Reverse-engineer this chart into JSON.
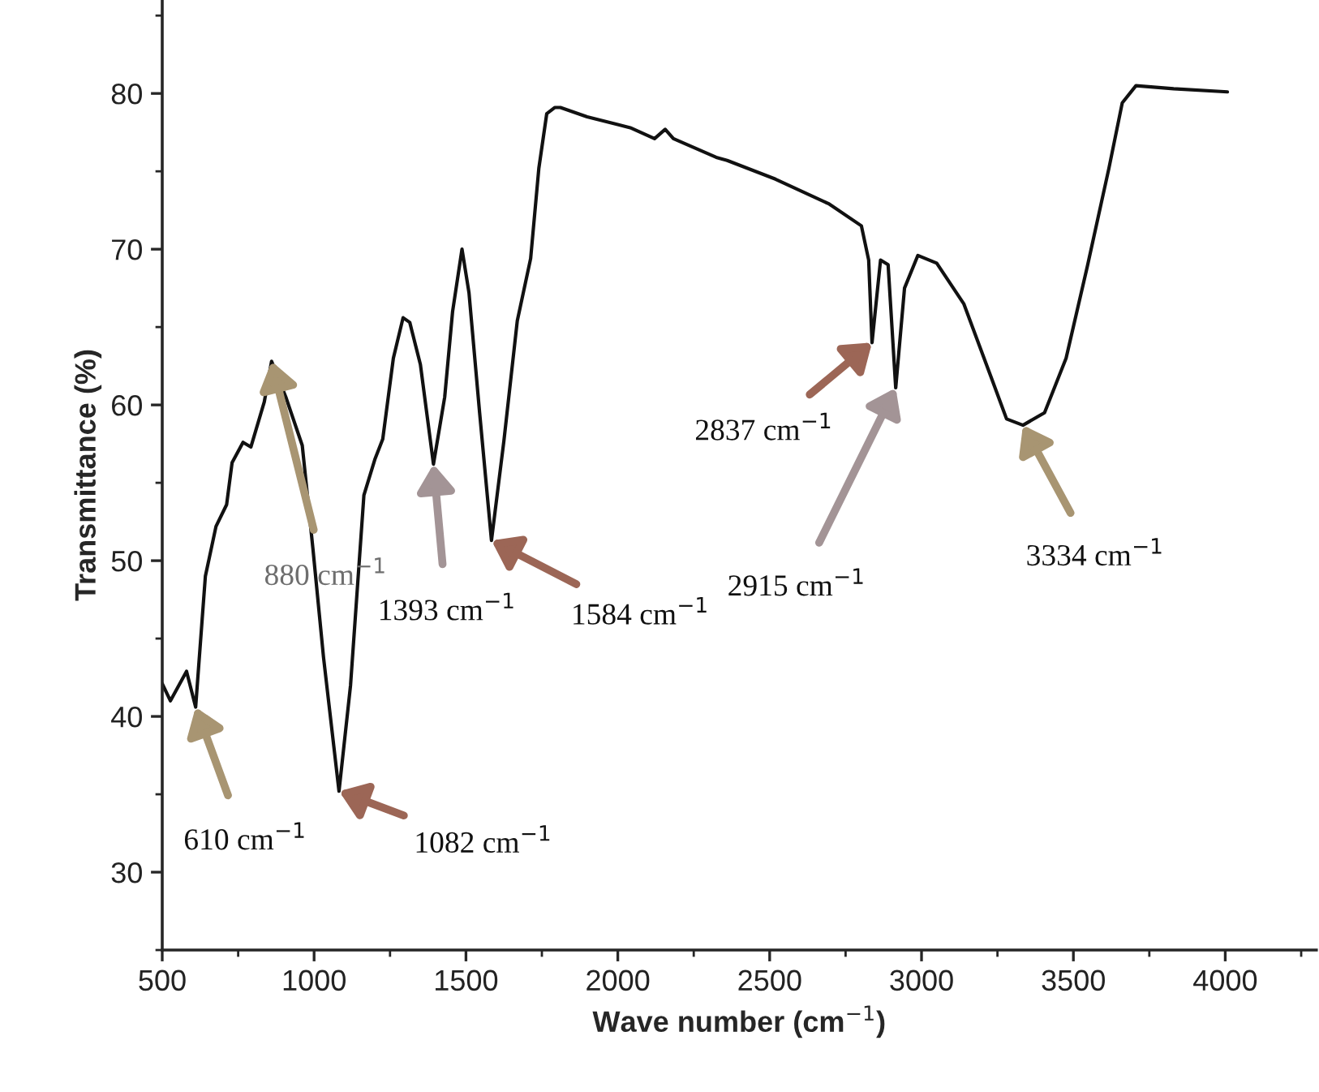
{
  "chart_data": {
    "type": "line",
    "xlabel": "Wave number (cm$^{−1}$)",
    "ylabel": "Transmittance (%)",
    "xlim": [
      500,
      4300
    ],
    "ylim": [
      25,
      86
    ],
    "xticks": [
      500,
      1000,
      1500,
      2000,
      2500,
      3000,
      3500,
      4000
    ],
    "yticks": [
      30,
      40,
      50,
      60,
      70,
      80
    ],
    "grid": false,
    "marker": "none",
    "line_style": "solid",
    "series": [
      {
        "color": "#111111",
        "x": [
          500,
          527,
          580,
          610,
          642,
          677,
          712,
          730,
          766,
          792,
          836,
          860,
          907,
          961,
          996,
          1031,
          1082,
          1120,
          1164,
          1200,
          1226,
          1261,
          1293,
          1315,
          1350,
          1393,
          1430,
          1456,
          1487,
          1510,
          1545,
          1584,
          1625,
          1669,
          1713,
          1740,
          1766,
          1793,
          1811,
          1899,
          2041,
          2121,
          2156,
          2183,
          2324,
          2360,
          2519,
          2696,
          2802,
          2826,
          2837,
          2865,
          2890,
          2915,
          2944,
          2988,
          3050,
          3139,
          3227,
          3280,
          3334,
          3405,
          3476,
          3546,
          3617,
          3661,
          3706,
          3830,
          4007
        ],
        "values": [
          42.1,
          41,
          42.9,
          40.6,
          49,
          52.2,
          53.6,
          56.3,
          57.6,
          57.3,
          60.2,
          62.8,
          60.5,
          57.4,
          50.8,
          43.8,
          35.2,
          42,
          54.2,
          56.5,
          57.8,
          63,
          65.6,
          65.3,
          62.6,
          56.2,
          60.5,
          66,
          70,
          67.2,
          59.5,
          51.3,
          57.7,
          65.4,
          69.4,
          75.2,
          78.7,
          79.1,
          79.1,
          78.5,
          77.8,
          77.1,
          77.7,
          77.1,
          75.9,
          75.7,
          74.5,
          72.9,
          71.5,
          69.3,
          64,
          69.3,
          69,
          61.1,
          67.5,
          69.6,
          69.1,
          66.5,
          61.9,
          59.1,
          58.7,
          59.5,
          63,
          68.9,
          75.2,
          79.4,
          80.5,
          80.3,
          80.1
        ]
      }
    ],
    "annotations": [
      {
        "text": "610 cm$^{−1}$",
        "x": 610,
        "y": 40.6
      },
      {
        "text": "880 cm$^{−1}$",
        "x": 860,
        "y": 62.8
      },
      {
        "text": "1082 cm$^{−1}$",
        "x": 1082,
        "y": 35.2
      },
      {
        "text": "1393 cm$^{−1}$",
        "x": 1393,
        "y": 56.2
      },
      {
        "text": "1584 cm$^{−1}$",
        "x": 1584,
        "y": 51.3
      },
      {
        "text": "2837 cm$^{−1}$",
        "x": 2837,
        "y": 64
      },
      {
        "text": "2915 cm$^{−1}$",
        "x": 2915,
        "y": 61.1
      },
      {
        "text": "3334 cm$^{−1}$",
        "x": 3334,
        "y": 58.7
      }
    ]
  }
}
